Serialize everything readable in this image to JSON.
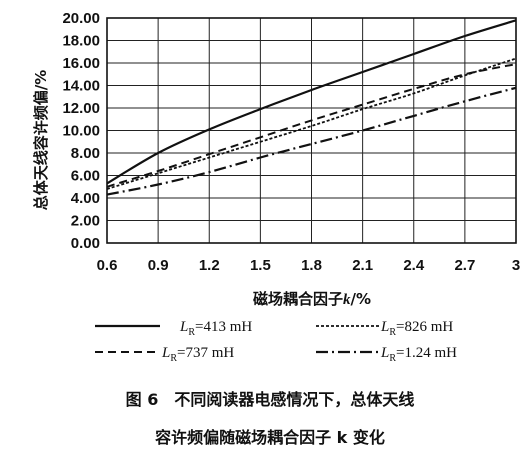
{
  "chart_data": {
    "type": "line",
    "title": "",
    "xlabel_prefix": "磁场耦合因子",
    "xlabel_var": "k",
    "xlabel_unit": "/%",
    "ylabel": "总体天线容许频偏/%",
    "xlim": [
      0.6,
      3.0
    ],
    "ylim": [
      0,
      20
    ],
    "grid": true,
    "x_ticks": [
      "0.6",
      "0.9",
      "1.2",
      "1.5",
      "1.8",
      "2.1",
      "2.4",
      "2.7",
      "3"
    ],
    "y_ticks": [
      "0.00",
      "2.00",
      "4.00",
      "6.00",
      "8.00",
      "10.00",
      "12.00",
      "14.00",
      "16.00",
      "18.00",
      "20.00"
    ],
    "legend_position": "bottom",
    "series": [
      {
        "name": "=413 mH",
        "name_var": "L",
        "name_sub": "R",
        "style": "solid",
        "points": [
          [
            0.6,
            5.3
          ],
          [
            0.9,
            8.0
          ],
          [
            1.2,
            10.1
          ],
          [
            1.5,
            11.9
          ],
          [
            1.8,
            13.6
          ],
          [
            2.1,
            15.2
          ],
          [
            2.4,
            16.8
          ],
          [
            2.7,
            18.4
          ],
          [
            3.0,
            19.8
          ]
        ]
      },
      {
        "name": "=826 mH",
        "name_var": "L",
        "name_sub": "R",
        "style": "dotted",
        "points": [
          [
            0.6,
            4.8
          ],
          [
            0.9,
            6.2
          ],
          [
            1.2,
            7.6
          ],
          [
            1.5,
            9.0
          ],
          [
            1.8,
            10.4
          ],
          [
            2.1,
            11.9
          ],
          [
            2.4,
            13.3
          ],
          [
            2.7,
            14.9
          ],
          [
            3.0,
            16.4
          ]
        ]
      },
      {
        "name": "=737 mH",
        "name_var": "L",
        "name_sub": "R",
        "style": "dashed",
        "points": [
          [
            0.6,
            5.0
          ],
          [
            0.9,
            6.4
          ],
          [
            1.2,
            7.9
          ],
          [
            1.5,
            9.4
          ],
          [
            1.8,
            10.9
          ],
          [
            2.1,
            12.3
          ],
          [
            2.4,
            13.7
          ],
          [
            2.7,
            15.0
          ],
          [
            3.0,
            15.9
          ]
        ]
      },
      {
        "name": "=1.24 mH",
        "name_var": "L",
        "name_sub": "R",
        "style": "dashdot",
        "points": [
          [
            0.6,
            4.3
          ],
          [
            0.9,
            5.2
          ],
          [
            1.2,
            6.3
          ],
          [
            1.5,
            7.6
          ],
          [
            1.8,
            8.8
          ],
          [
            2.1,
            10.0
          ],
          [
            2.4,
            11.3
          ],
          [
            2.7,
            12.6
          ],
          [
            3.0,
            13.8
          ]
        ]
      }
    ]
  },
  "caption": {
    "line1": "图 6　不同阅读器电感情况下，总体天线",
    "line2": "容许频偏随磁场耦合因子 k 变化"
  }
}
